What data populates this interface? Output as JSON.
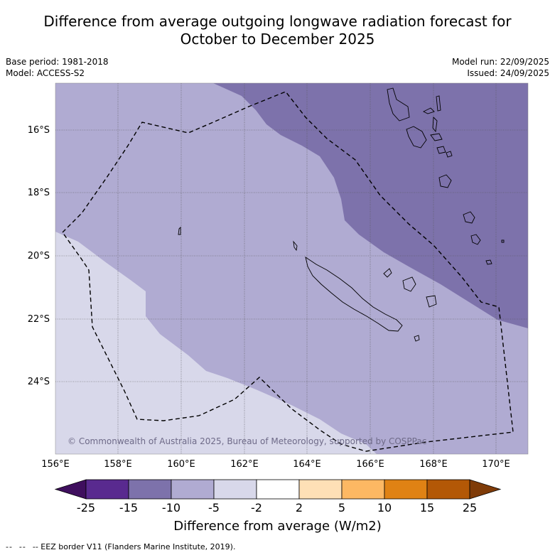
{
  "title": {
    "line1": "Difference from average outgoing longwave radiation forecast for",
    "line2": "October to December 2025"
  },
  "meta": {
    "base_period": "Base period: 1981-2018",
    "model": "Model: ACCESS-S2",
    "model_run": "Model run: 22/09/2025",
    "issued": "Issued: 24/09/2025"
  },
  "map": {
    "lat_labels": [
      "16°S",
      "18°S",
      "20°S",
      "22°S",
      "24°S"
    ],
    "lon_labels": [
      "156°E",
      "158°E",
      "160°E",
      "162°E",
      "164°E",
      "166°E",
      "168°E",
      "170°E"
    ],
    "copyright": "© Commonwealth of Australia 2025, Bureau of Meteorology, supported by COSPPac",
    "colors": {
      "band_lt_minus15": "#7d72ab",
      "band_minus10": "#b0abd2",
      "band_minus5": "#d8d8ea",
      "coast": "#000000",
      "eez": "#000000"
    }
  },
  "colorbar": {
    "ticks": [
      "-25",
      "-15",
      "-10",
      "-5",
      "-2",
      "2",
      "5",
      "10",
      "15",
      "25"
    ],
    "colors": [
      "#3f0f5e",
      "#592a8f",
      "#7d72ab",
      "#b0abd2",
      "#d8d8ea",
      "#ffffff",
      "#fee0b6",
      "#fdb863",
      "#e08214",
      "#b35806",
      "#7f3b08"
    ],
    "title": "Difference from average (W/m2)"
  },
  "legend": {
    "eez_text": "-- EEZ border V11 (Flanders Marine Institute, 2019)."
  }
}
